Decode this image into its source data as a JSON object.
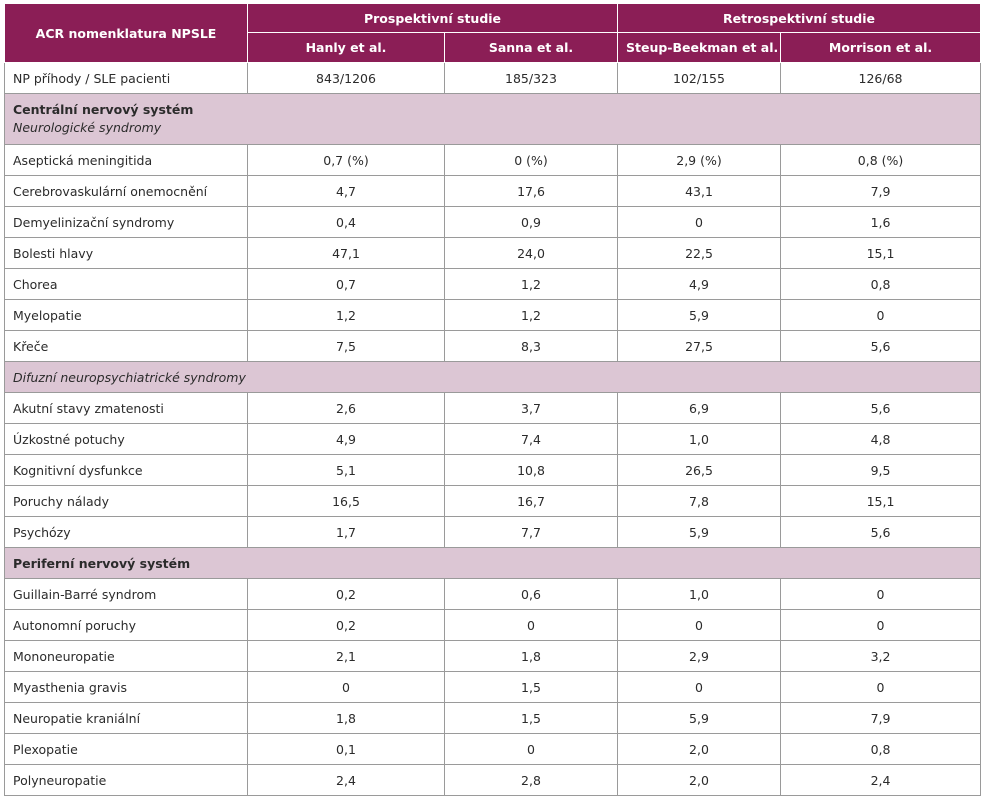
{
  "chart_data": {
    "type": "table",
    "header": {
      "corner": "ACR nomenklatura NPSLE",
      "groups": [
        "Prospektivní studie",
        "Retrospektivní studie"
      ],
      "columns": [
        "Hanly et al.",
        "Sanna et al.",
        "Steup-Beekman et al.",
        "Morrison et al."
      ]
    },
    "rows": [
      {
        "kind": "data",
        "label": "NP příhody / SLE pacienti",
        "values": [
          "843/1206",
          "185/323",
          "102/155",
          "126/68"
        ]
      },
      {
        "kind": "section",
        "label": "Centrální nervový systém",
        "sub": "Neurologické syndromy"
      },
      {
        "kind": "data",
        "label": "Aseptická meningitida",
        "values": [
          "0,7 (%)",
          "0 (%)",
          "2,9 (%)",
          "0,8 (%)"
        ]
      },
      {
        "kind": "data",
        "label": "Cerebrovaskulární onemocnění",
        "values": [
          "4,7",
          "17,6",
          "43,1",
          "7,9"
        ]
      },
      {
        "kind": "data",
        "label": "Demyelinizační syndromy",
        "values": [
          "0,4",
          "0,9",
          "0",
          "1,6"
        ]
      },
      {
        "kind": "data",
        "label": "Bolesti hlavy",
        "values": [
          "47,1",
          "24,0",
          "22,5",
          "15,1"
        ]
      },
      {
        "kind": "data",
        "label": "Chorea",
        "values": [
          "0,7",
          "1,2",
          "4,9",
          "0,8"
        ]
      },
      {
        "kind": "data",
        "label": "Myelopatie",
        "values": [
          "1,2",
          "1,2",
          "5,9",
          "0"
        ]
      },
      {
        "kind": "data",
        "label": "Křeče",
        "values": [
          "7,5",
          "8,3",
          "27,5",
          "5,6"
        ]
      },
      {
        "kind": "subsection",
        "label": "Difuzní neuropsychiatrické syndromy"
      },
      {
        "kind": "data",
        "label": "Akutní stavy zmatenosti",
        "values": [
          "2,6",
          "3,7",
          "6,9",
          "5,6"
        ]
      },
      {
        "kind": "data",
        "label": "Úzkostné potuchy",
        "values": [
          "4,9",
          "7,4",
          "1,0",
          "4,8"
        ]
      },
      {
        "kind": "data",
        "label": "Kognitivní dysfunkce",
        "values": [
          "5,1",
          "10,8",
          "26,5",
          "9,5"
        ]
      },
      {
        "kind": "data",
        "label": "Poruchy nálady",
        "values": [
          "16,5",
          "16,7",
          "7,8",
          "15,1"
        ]
      },
      {
        "kind": "data",
        "label": "Psychózy",
        "values": [
          "1,7",
          "7,7",
          "5,9",
          "5,6"
        ]
      },
      {
        "kind": "section",
        "label": "Periferní nervový systém"
      },
      {
        "kind": "data",
        "label": "Guillain-Barré syndrom",
        "values": [
          "0,2",
          "0,6",
          "1,0",
          "0"
        ]
      },
      {
        "kind": "data",
        "label": "Autonomní poruchy",
        "values": [
          "0,2",
          "0",
          "0",
          "0"
        ]
      },
      {
        "kind": "data",
        "label": "Mononeuropatie",
        "values": [
          "2,1",
          "1,8",
          "2,9",
          "3,2"
        ]
      },
      {
        "kind": "data",
        "label": "Myasthenia gravis",
        "values": [
          "0",
          "1,5",
          "0",
          "0"
        ]
      },
      {
        "kind": "data",
        "label": "Neuropatie kraniální",
        "values": [
          "1,8",
          "1,5",
          "5,9",
          "7,9"
        ]
      },
      {
        "kind": "data",
        "label": "Plexopatie",
        "values": [
          "0,1",
          "0",
          "2,0",
          "0,8"
        ]
      },
      {
        "kind": "data",
        "label": "Polyneuropatie",
        "values": [
          "2,4",
          "2,8",
          "2,0",
          "2,4"
        ]
      }
    ]
  },
  "colors": {
    "header_bg": "#8b1e56",
    "section_bg": "#dcc6d4",
    "border": "#9a9a9a"
  }
}
